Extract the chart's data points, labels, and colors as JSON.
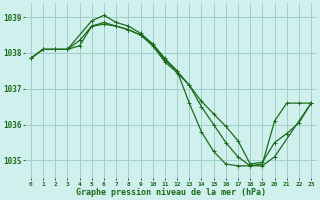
{
  "title": "Graphe pression niveau de la mer (hPa)",
  "bg_color": "#d0f0ee",
  "grid_color": "#a0d0c8",
  "line_color": "#1a6b1a",
  "xlim": [
    -0.5,
    23.5
  ],
  "ylim": [
    1034.5,
    1039.4
  ],
  "yticks": [
    1035,
    1036,
    1037,
    1038,
    1039
  ],
  "xtick_labels": [
    "0",
    "1",
    "2",
    "3",
    "4",
    "5",
    "6",
    "7",
    "8",
    "9",
    "10",
    "11",
    "12",
    "13",
    "14",
    "15",
    "16",
    "17",
    "18",
    "19",
    "20",
    "21",
    "22",
    "23"
  ],
  "line1_x": [
    0,
    1,
    2,
    3,
    4,
    5,
    6,
    7,
    8,
    9,
    10,
    11,
    12,
    13,
    14,
    15,
    16,
    17,
    18,
    19,
    20,
    21,
    22,
    23
  ],
  "line1_y": [
    1037.85,
    1038.1,
    1038.1,
    1038.1,
    1038.2,
    1038.75,
    1038.85,
    1038.75,
    1038.65,
    1038.5,
    1038.2,
    1037.75,
    1037.45,
    1037.1,
    1036.65,
    1036.3,
    1035.95,
    1035.55,
    1034.9,
    1034.95,
    1035.5,
    1035.75,
    1036.05,
    1036.6
  ],
  "line2_x": [
    0,
    1,
    2,
    3,
    4,
    5,
    6,
    7,
    8,
    9,
    10,
    11,
    12,
    13,
    14,
    15,
    16,
    17,
    18,
    19,
    20,
    23
  ],
  "line2_y": [
    1037.85,
    1038.1,
    1038.1,
    1038.1,
    1038.35,
    1038.75,
    1038.8,
    1038.75,
    1038.65,
    1038.5,
    1038.25,
    1037.8,
    1037.5,
    1037.1,
    1036.5,
    1036.0,
    1035.5,
    1035.1,
    1034.85,
    1034.85,
    1035.1,
    1036.6
  ],
  "line3_x": [
    0,
    1,
    2,
    3,
    5,
    6,
    7,
    8,
    9,
    10,
    11,
    12,
    13,
    14,
    15,
    16,
    17,
    18,
    19,
    20,
    21,
    22,
    23
  ],
  "line3_y": [
    1037.85,
    1038.1,
    1038.1,
    1038.1,
    1038.9,
    1039.05,
    1038.85,
    1038.75,
    1038.55,
    1038.25,
    1037.85,
    1037.5,
    1036.6,
    1035.8,
    1035.25,
    1034.9,
    1034.85,
    1034.85,
    1034.9,
    1036.1,
    1036.6,
    1036.6,
    1036.6
  ]
}
